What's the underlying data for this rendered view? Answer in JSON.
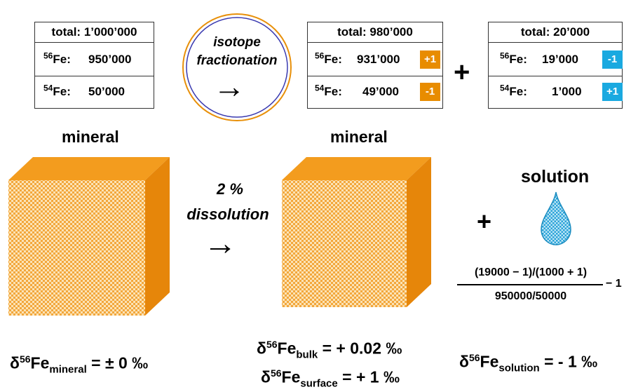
{
  "colors": {
    "mineral_orange": "#e8900a",
    "mineral_light": "#f7b64b",
    "badge_orange": "#e88c00",
    "badge_blue": "#1aa9e0",
    "circle_outer": "#e8900a",
    "circle_inner": "#3a3ab0",
    "drop_blue": "#2aa3d8"
  },
  "box1": {
    "total": "total: 1’000’000",
    "fe56_iso": "56",
    "fe56_label": "Fe:",
    "fe56_value": "950’000",
    "fe54_iso": "54",
    "fe54_label": "Fe:",
    "fe54_value": "50’000"
  },
  "fractionation": {
    "line1": "isotope",
    "line2": "fractionation",
    "arrow": "→"
  },
  "box2": {
    "total": "total: 980’000",
    "fe56_iso": "56",
    "fe56_label": "Fe:",
    "fe56_value": "931’000",
    "fe56_badge": "+1",
    "fe54_iso": "54",
    "fe54_label": "Fe:",
    "fe54_value": "49’000",
    "fe54_badge": "-1"
  },
  "plus1": "+",
  "box3": {
    "total": "total: 20’000",
    "fe56_iso": "56",
    "fe56_label": "Fe:",
    "fe56_value": "19’000",
    "fe56_badge": "-1",
    "fe54_iso": "54",
    "fe54_label": "Fe:",
    "fe54_value": "1’000",
    "fe54_badge": "+1"
  },
  "mineral_left_label": "mineral",
  "mineral_right_label": "mineral",
  "dissolution": {
    "line1": "2 %",
    "line2": "dissolution",
    "arrow": "→"
  },
  "solution_label": "solution",
  "plus2": "+",
  "ratio": {
    "numerator": "(19000 − 1)/(1000 + 1)",
    "denominator": "950000/50000",
    "suffix": "− 1"
  },
  "delta_mineral": {
    "delta": "δ",
    "iso": "56",
    "el": "Fe",
    "sub": "mineral",
    "value": " = ± 0 ‰"
  },
  "delta_bulk": {
    "delta": "δ",
    "iso": "56",
    "el": "Fe",
    "sub": "bulk",
    "value": " = + 0.02 ‰"
  },
  "delta_surface": {
    "delta": "δ",
    "iso": "56",
    "el": "Fe",
    "sub": "surface",
    "value": " = + 1 ‰"
  },
  "delta_solution": {
    "delta": "δ",
    "iso": "56",
    "el": "Fe",
    "sub": "solution",
    "value": " = - 1 ‰"
  }
}
